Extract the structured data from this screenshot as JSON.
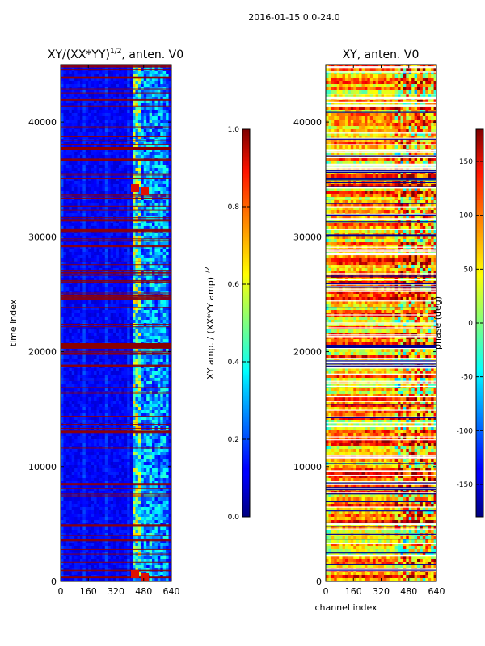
{
  "suptitle": "2016-01-15 0.0-24.0",
  "chart_data": [
    {
      "type": "heatmap",
      "title_main": "XY/(XX*YY)",
      "title_exp": "1/2",
      "title_rest": ", anten. V0",
      "xlabel": "",
      "ylabel": "time index",
      "xlim": [
        0,
        640
      ],
      "ylim": [
        0,
        45000
      ],
      "xticks": [
        "0",
        "160",
        "320",
        "480",
        "640"
      ],
      "yticks": [
        "0",
        "10000",
        "20000",
        "30000",
        "40000"
      ],
      "colorbar": {
        "label_main": "XY amp. / (XX*YY amp)",
        "label_exp": "1/2",
        "range": [
          0.0,
          1.0
        ],
        "ticks": [
          "0.0",
          "0.2",
          "0.4",
          "0.6",
          "0.8",
          "1.0"
        ]
      }
    },
    {
      "type": "heatmap",
      "title_main": "XY, anten. V0",
      "xlabel": "channel index",
      "ylabel": "",
      "xlim": [
        0,
        640
      ],
      "ylim": [
        0,
        45000
      ],
      "xticks": [
        "0",
        "160",
        "320",
        "480",
        "640"
      ],
      "yticks": [
        "0",
        "10000",
        "20000",
        "30000",
        "40000"
      ],
      "colorbar": {
        "label_main": "phase (deg)",
        "range": [
          -180,
          180
        ],
        "ticks": [
          "-150",
          "-100",
          "-50",
          "0",
          "50",
          "100",
          "150"
        ]
      }
    }
  ]
}
